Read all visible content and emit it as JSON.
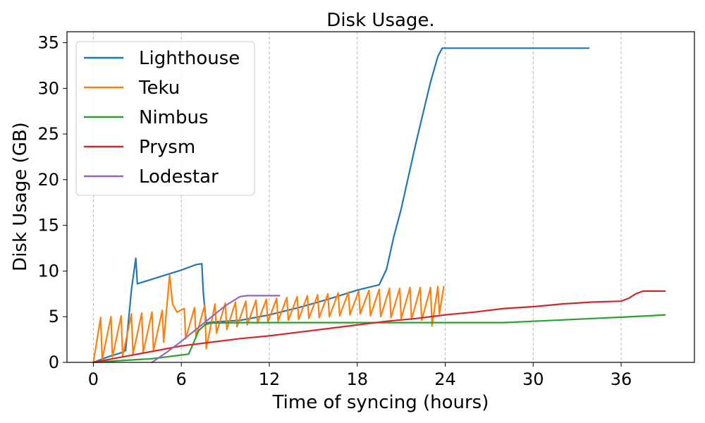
{
  "chart_data": {
    "type": "line",
    "title": "Disk Usage.",
    "xlabel": "Time of syncing (hours)",
    "ylabel": "Disk Usage (GB)",
    "xlim": [
      -1.8,
      41
    ],
    "ylim": [
      0,
      36.2
    ],
    "xticks": [
      0,
      6,
      12,
      18,
      24,
      30,
      36
    ],
    "yticks": [
      0,
      5,
      10,
      15,
      20,
      25,
      30,
      35
    ],
    "grid": "vertical-dashed",
    "legend_position": "upper-left",
    "series": [
      {
        "name": "Lighthouse",
        "color": "#1f77b4",
        "x": [
          0,
          1,
          2,
          2.2,
          2.6,
          2.9,
          3.0,
          4,
          5,
          6,
          7,
          7.4,
          7.5,
          7.7,
          8,
          10,
          12,
          14,
          16,
          18,
          19.5,
          20.0,
          20.5,
          21,
          22,
          23,
          23.5,
          23.8,
          24.5,
          28,
          30,
          33.8
        ],
        "y": [
          0,
          0.6,
          1.1,
          1.3,
          8.0,
          11.4,
          8.6,
          9.1,
          9.6,
          10.1,
          10.7,
          10.8,
          7.6,
          4.3,
          4.4,
          4.6,
          5.2,
          6.0,
          6.9,
          7.9,
          8.5,
          10.2,
          13.8,
          16.8,
          24.0,
          30.7,
          33.5,
          34.4,
          34.4,
          34.4,
          34.4,
          34.4
        ]
      },
      {
        "name": "Teku",
        "color": "#ff7f0e",
        "x": [
          0,
          0.5,
          0.6,
          1.2,
          1.3,
          1.9,
          2.0,
          2.6,
          2.7,
          3.3,
          3.4,
          4.0,
          4.1,
          4.7,
          4.8,
          5.2,
          5.4,
          5.7,
          6.2,
          6.3,
          6.9,
          7.0,
          7.6,
          7.7,
          8.3,
          8.4,
          9.0,
          9.1,
          9.7,
          9.8,
          10.4,
          10.5,
          11.1,
          11.2,
          11.8,
          11.9,
          12.5,
          12.6,
          13.2,
          13.3,
          13.9,
          14.0,
          14.6,
          14.7,
          15.3,
          15.4,
          16.0,
          16.1,
          16.7,
          16.8,
          17.4,
          17.5,
          18.1,
          18.2,
          18.8,
          18.9,
          19.5,
          19.6,
          20.2,
          20.3,
          20.9,
          21.0,
          21.6,
          21.7,
          22.3,
          22.4,
          23.0,
          23.1,
          23.5,
          23.6,
          23.9
        ],
        "y": [
          0,
          4.9,
          0.3,
          5.0,
          0.6,
          5.1,
          0.7,
          5.3,
          0.9,
          5.4,
          1.1,
          5.5,
          1.3,
          5.7,
          2.2,
          9.6,
          6.4,
          5.5,
          5.9,
          2.6,
          6.0,
          2.8,
          6.3,
          1.5,
          6.4,
          3.2,
          6.5,
          3.6,
          6.6,
          3.9,
          6.7,
          4.1,
          6.8,
          4.3,
          6.9,
          4.4,
          7.0,
          4.5,
          7.1,
          4.6,
          7.2,
          4.7,
          7.3,
          4.8,
          7.4,
          4.9,
          7.5,
          5.0,
          7.6,
          5.1,
          7.7,
          5.2,
          7.8,
          5.3,
          7.9,
          5.1,
          8.0,
          5.0,
          8.1,
          4.9,
          8.1,
          4.8,
          8.2,
          4.7,
          8.2,
          4.6,
          8.2,
          4.0,
          8.3,
          5.3,
          8.3
        ]
      },
      {
        "name": "Nimbus",
        "color": "#2ca02c",
        "x": [
          0,
          2,
          4,
          5,
          6,
          6.5,
          6.8,
          7.2,
          7.6,
          8,
          10,
          12,
          14,
          16,
          18,
          20,
          22,
          24,
          26,
          28,
          30,
          32,
          34,
          36,
          38,
          39
        ],
        "y": [
          0,
          0.2,
          0.4,
          0.6,
          0.8,
          0.9,
          2.0,
          3.5,
          4.1,
          4.3,
          4.35,
          4.35,
          4.35,
          4.35,
          4.35,
          4.35,
          4.35,
          4.35,
          4.35,
          4.35,
          4.5,
          4.65,
          4.8,
          4.95,
          5.1,
          5.2
        ]
      },
      {
        "name": "Prysm",
        "color": "#d62728",
        "x": [
          0,
          2,
          4,
          6,
          8,
          10,
          12,
          14,
          16,
          18,
          20,
          22,
          24,
          26,
          28,
          30,
          32,
          34,
          36,
          36.5,
          37,
          37.5,
          38,
          39
        ],
        "y": [
          0,
          0.6,
          1.2,
          1.8,
          2.2,
          2.6,
          2.9,
          3.3,
          3.7,
          4.1,
          4.5,
          4.8,
          5.2,
          5.5,
          5.9,
          6.1,
          6.4,
          6.6,
          6.7,
          7.0,
          7.5,
          7.8,
          7.8,
          7.8
        ]
      },
      {
        "name": "Lodestar",
        "color": "#9467bd",
        "x": [
          4,
          5,
          6,
          7,
          8,
          9,
          10,
          10.5,
          11,
          12,
          12.7
        ],
        "y": [
          0,
          1.1,
          2.3,
          3.6,
          4.9,
          6.2,
          7.2,
          7.3,
          7.3,
          7.3,
          7.3
        ]
      }
    ]
  }
}
